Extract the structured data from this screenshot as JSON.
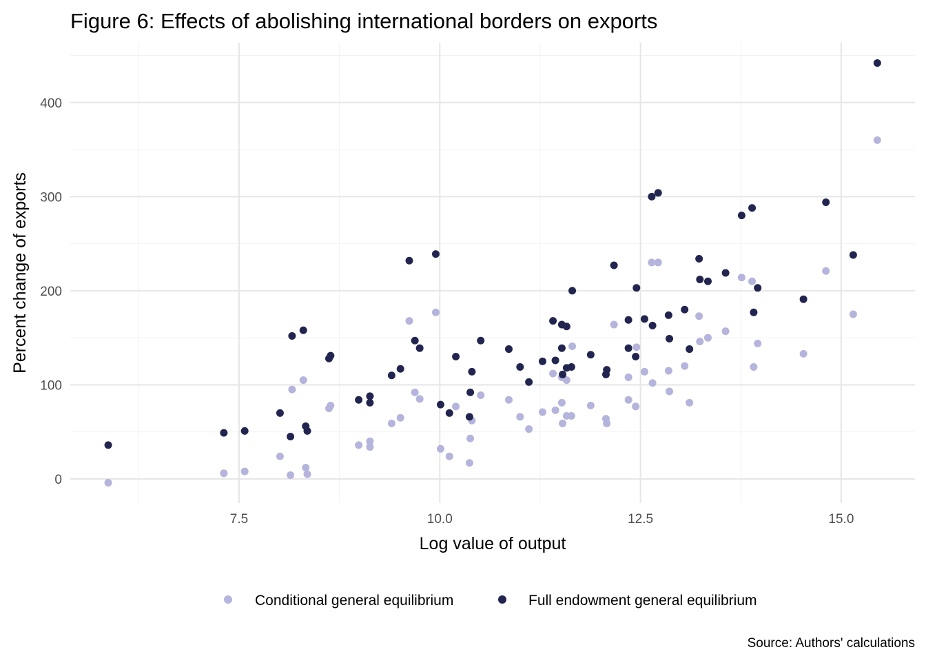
{
  "chart_data": {
    "type": "scatter",
    "title": "Figure 6: Effects of abolishing international borders on exports",
    "xlabel": "Log value of output",
    "ylabel": "Percent change of exports",
    "caption": "Source: Authors' calculations",
    "xlim": [
      5.7,
      15.9
    ],
    "ylim": [
      -25,
      465
    ],
    "x_ticks": [
      7.5,
      10.0,
      12.5,
      15.0
    ],
    "x_tick_labels": [
      "7.5",
      "10.0",
      "12.5",
      "15.0"
    ],
    "y_ticks": [
      0,
      100,
      200,
      300,
      400
    ],
    "y_tick_labels": [
      "0",
      "100",
      "200",
      "300",
      "400"
    ],
    "grid": true,
    "legend_position": "bottom",
    "colors": {
      "conditional": "#b4b4dc",
      "full": "#22254f",
      "grid_major": "#e6e6e6",
      "grid_minor": "#f2f2f2"
    },
    "x": [
      5.87,
      7.31,
      7.57,
      8.01,
      8.14,
      8.16,
      8.3,
      8.33,
      8.35,
      8.62,
      8.64,
      8.99,
      9.13,
      9.13,
      9.4,
      9.51,
      9.62,
      9.69,
      9.75,
      9.95,
      10.01,
      10.12,
      10.2,
      10.37,
      10.38,
      10.4,
      10.51,
      10.86,
      11.0,
      11.11,
      11.28,
      11.41,
      11.44,
      11.52,
      11.52,
      11.53,
      11.58,
      11.58,
      11.64,
      11.65,
      11.88,
      12.07,
      12.08,
      12.17,
      12.35,
      12.35,
      12.44,
      12.45,
      12.55,
      12.64,
      12.65,
      12.72,
      12.85,
      12.86,
      13.05,
      13.11,
      13.23,
      13.24,
      13.34,
      13.56,
      13.76,
      13.89,
      13.91,
      13.96,
      14.53,
      14.81,
      15.15,
      15.45
    ],
    "series": [
      {
        "name": "Conditional general equilibrium",
        "key": "conditional",
        "values": [
          -4,
          6,
          8,
          24,
          4,
          95,
          105,
          12,
          5,
          75,
          78,
          36,
          40,
          34,
          59,
          65,
          168,
          92,
          85,
          177,
          32,
          24,
          77,
          17,
          43,
          62,
          89,
          84,
          66,
          53,
          71,
          112,
          73,
          108,
          81,
          59,
          67,
          105,
          67,
          141,
          78,
          64,
          59,
          164,
          84,
          108,
          77,
          140,
          114,
          230,
          102,
          230,
          115,
          93,
          120,
          81,
          173,
          146,
          150,
          157,
          214,
          210,
          119,
          144,
          133,
          221,
          175,
          360
        ]
      },
      {
        "name": "Full endowment general equilibrium",
        "key": "full",
        "values": [
          36,
          49,
          51,
          70,
          45,
          152,
          158,
          56,
          51,
          128,
          131,
          84,
          88,
          81,
          110,
          117,
          232,
          147,
          139,
          239,
          79,
          70,
          130,
          66,
          92,
          114,
          147,
          138,
          119,
          103,
          125,
          168,
          126,
          164,
          139,
          111,
          162,
          118,
          119,
          200,
          132,
          111,
          116,
          227,
          139,
          169,
          130,
          203,
          170,
          300,
          163,
          304,
          174,
          149,
          180,
          138,
          234,
          212,
          210,
          219,
          280,
          288,
          177,
          203,
          191,
          294,
          238,
          442
        ]
      }
    ]
  }
}
